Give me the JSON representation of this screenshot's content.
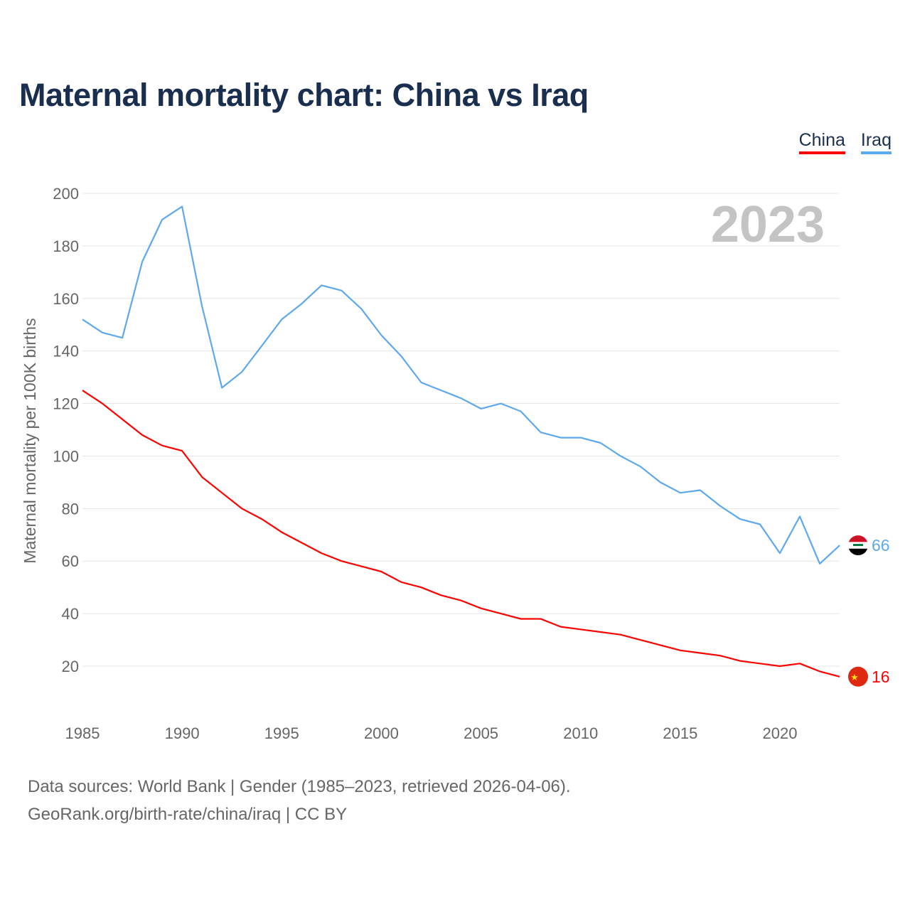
{
  "title": "Maternal mortality chart: China vs Iraq",
  "year_label": "2023",
  "footer": {
    "line1": "Data sources: World Bank | Gender (1985–2023, retrieved 2026-04-06).",
    "line2": "GeoRank.org/birth-rate/china/iraq | CC BY"
  },
  "chart_data": {
    "type": "line",
    "title": "Maternal mortality chart: China vs Iraq",
    "xlabel": "",
    "ylabel": "Maternal mortality per 100K births",
    "x": [
      1985,
      1986,
      1987,
      1988,
      1989,
      1990,
      1991,
      1992,
      1993,
      1994,
      1995,
      1996,
      1997,
      1998,
      1999,
      2000,
      2001,
      2002,
      2003,
      2004,
      2005,
      2006,
      2007,
      2008,
      2009,
      2010,
      2011,
      2012,
      2013,
      2014,
      2015,
      2016,
      2017,
      2018,
      2019,
      2020,
      2021,
      2022,
      2023
    ],
    "xticks": [
      "1985",
      "1990",
      "1995",
      "2000",
      "2005",
      "2010",
      "2015",
      "2020"
    ],
    "yticks": [
      "20",
      "40",
      "60",
      "80",
      "100",
      "120",
      "140",
      "160",
      "180",
      "200"
    ],
    "ylim": [
      5,
      200
    ],
    "xlim": [
      1985,
      2023
    ],
    "grid": true,
    "legend_position": "top-right",
    "series": [
      {
        "name": "China",
        "color": "#ff0000",
        "end_label": "16",
        "values": [
          125,
          120,
          114,
          108,
          104,
          102,
          92,
          86,
          80,
          76,
          71,
          67,
          63,
          60,
          58,
          56,
          52,
          50,
          47,
          45,
          42,
          40,
          38,
          38,
          35,
          34,
          33,
          32,
          30,
          28,
          26,
          25,
          24,
          22,
          21,
          20,
          21,
          18,
          16
        ]
      },
      {
        "name": "Iraq",
        "color": "#5ea8ee",
        "end_label": "66",
        "values": [
          152,
          147,
          145,
          174,
          190,
          195,
          157,
          126,
          132,
          142,
          152,
          158,
          165,
          163,
          156,
          146,
          138,
          128,
          125,
          122,
          118,
          120,
          117,
          109,
          107,
          107,
          105,
          100,
          96,
          90,
          86,
          87,
          81,
          76,
          74,
          63,
          77,
          59,
          66
        ]
      }
    ]
  }
}
